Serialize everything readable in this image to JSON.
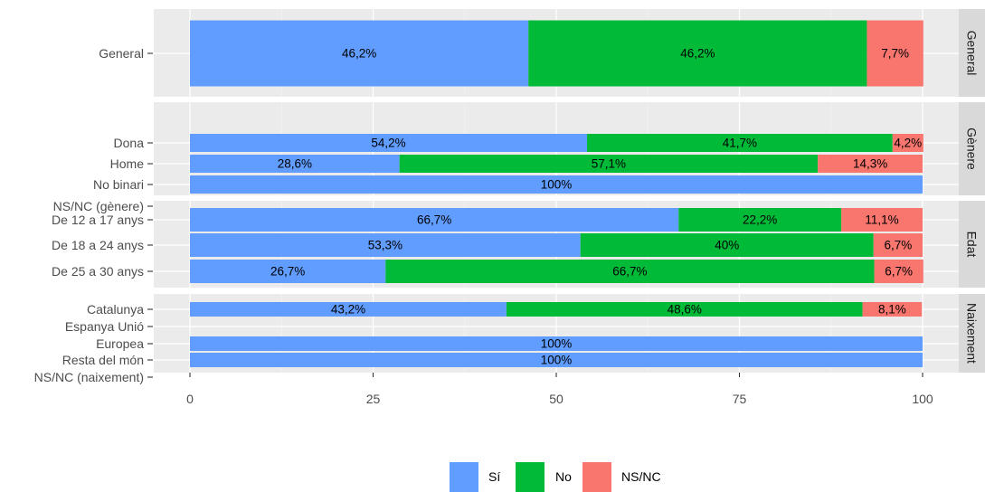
{
  "chart_data": {
    "type": "bar",
    "orientation": "horizontal",
    "stacked": true,
    "xlim": [
      0,
      100
    ],
    "x_ticks": [
      "0",
      "25",
      "50",
      "75",
      "100"
    ],
    "grid": true,
    "legend_position": "bottom",
    "legend": [
      {
        "label": "Sí",
        "color": "#619CFF"
      },
      {
        "label": "No",
        "color": "#00BA38"
      },
      {
        "label": "NS/NC",
        "color": "#F8766D"
      }
    ],
    "panels": [
      {
        "strip": "General",
        "rows": [
          {
            "category": "General",
            "values": [
              46.2,
              46.2,
              7.7
            ],
            "labels": [
              "46,2%",
              "46,2%",
              "7,7%"
            ]
          }
        ]
      },
      {
        "strip": "Gènere",
        "rows": [
          {
            "category": "Dona",
            "values": [
              54.2,
              41.7,
              4.2
            ],
            "labels": [
              "54,2%",
              "41,7%",
              "4,2%"
            ]
          },
          {
            "category": "Home",
            "values": [
              28.6,
              57.1,
              14.3
            ],
            "labels": [
              "28,6%",
              "57,1%",
              "14,3%"
            ]
          },
          {
            "category": "No binari",
            "values": [
              100,
              0,
              0
            ],
            "labels": [
              "100%",
              "",
              ""
            ]
          },
          {
            "category": "NS/NC (gènere)",
            "values": [
              0,
              0,
              0
            ],
            "labels": [
              "",
              "",
              ""
            ]
          }
        ]
      },
      {
        "strip": "Edat",
        "rows": [
          {
            "category": "De 12 a 17 anys",
            "values": [
              66.7,
              22.2,
              11.1
            ],
            "labels": [
              "66,7%",
              "22,2%",
              "11,1%"
            ]
          },
          {
            "category": "De 18 a 24 anys",
            "values": [
              53.3,
              40,
              6.7
            ],
            "labels": [
              "53,3%",
              "40%",
              "6,7%"
            ]
          },
          {
            "category": "De 25 a 30 anys",
            "values": [
              26.7,
              66.7,
              6.7
            ],
            "labels": [
              "26,7%",
              "66,7%",
              "6,7%"
            ]
          }
        ]
      },
      {
        "strip": "Naixement",
        "rows": [
          {
            "category": "Catalunya",
            "values": [
              43.2,
              48.6,
              8.1
            ],
            "labels": [
              "43,2%",
              "48,6%",
              "8,1%"
            ]
          },
          {
            "category": "Espanya Unió",
            "values": [
              0,
              0,
              0
            ],
            "labels": [
              "",
              "",
              ""
            ]
          },
          {
            "category": "Europea",
            "values": [
              100,
              0,
              0
            ],
            "labels": [
              "100%",
              "",
              ""
            ]
          },
          {
            "category": "Resta del món",
            "values": [
              100,
              0,
              0
            ],
            "labels": [
              "100%",
              "",
              ""
            ]
          },
          {
            "category": "NS/NC (naixement)",
            "values": [
              0,
              0,
              0
            ],
            "labels": [
              "",
              "",
              ""
            ]
          }
        ]
      }
    ]
  }
}
